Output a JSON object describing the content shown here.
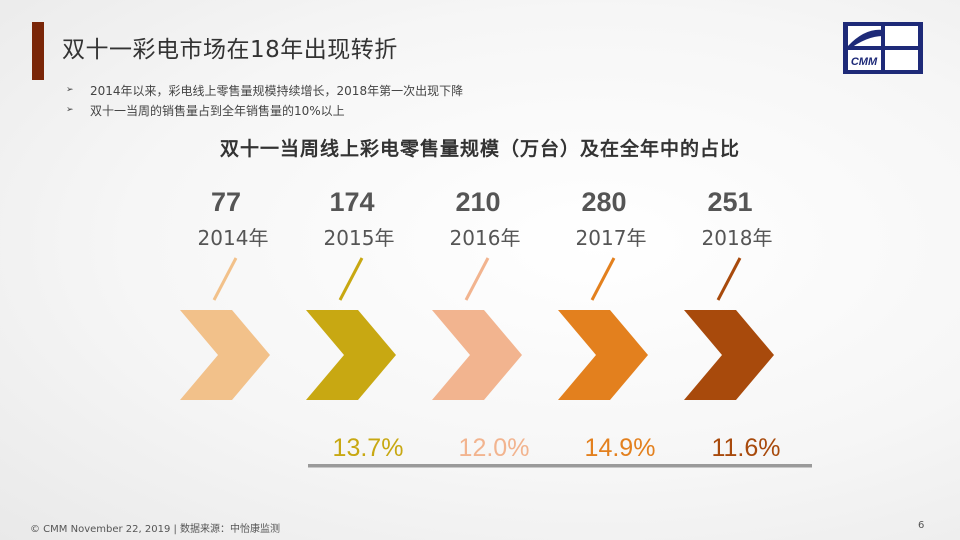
{
  "slide": {
    "title": "双十一彩电市场在18年出现转折",
    "bullets": [
      "2014年以来，彩电线上零售量规模持续增长，2018年第一次出现下降",
      "双十一当周的销售量占到全年销售量的10%以上"
    ],
    "logo_text": "CMM",
    "footer_left": "© CMM  November 22, 2019 |    数据来源：中怡康监测",
    "page_number": "6",
    "colors": {
      "title_accent": "#7a2608",
      "logo_blue": "#1e2a78"
    }
  },
  "chart_data": {
    "type": "bar",
    "title": "双十一当周线上彩电零售量规模（万台）及在全年中的占比",
    "categories": [
      "2014年",
      "2015年",
      "2016年",
      "2017年",
      "2018年"
    ],
    "series": [
      {
        "values": [
          77,
          174,
          210,
          280,
          251
        ],
        "value_labels": [
          "77",
          "174",
          "210",
          "280",
          "251"
        ]
      },
      {
        "values": [
          null,
          13.7,
          12.0,
          14.9,
          11.6
        ],
        "value_labels": [
          "",
          "13.7%",
          "12.0%",
          "14.9%",
          "11.6%"
        ]
      }
    ],
    "colors": [
      "#f2c18a",
      "#c8a812",
      "#f2b48f",
      "#e3801e",
      "#a84a0c"
    ]
  }
}
